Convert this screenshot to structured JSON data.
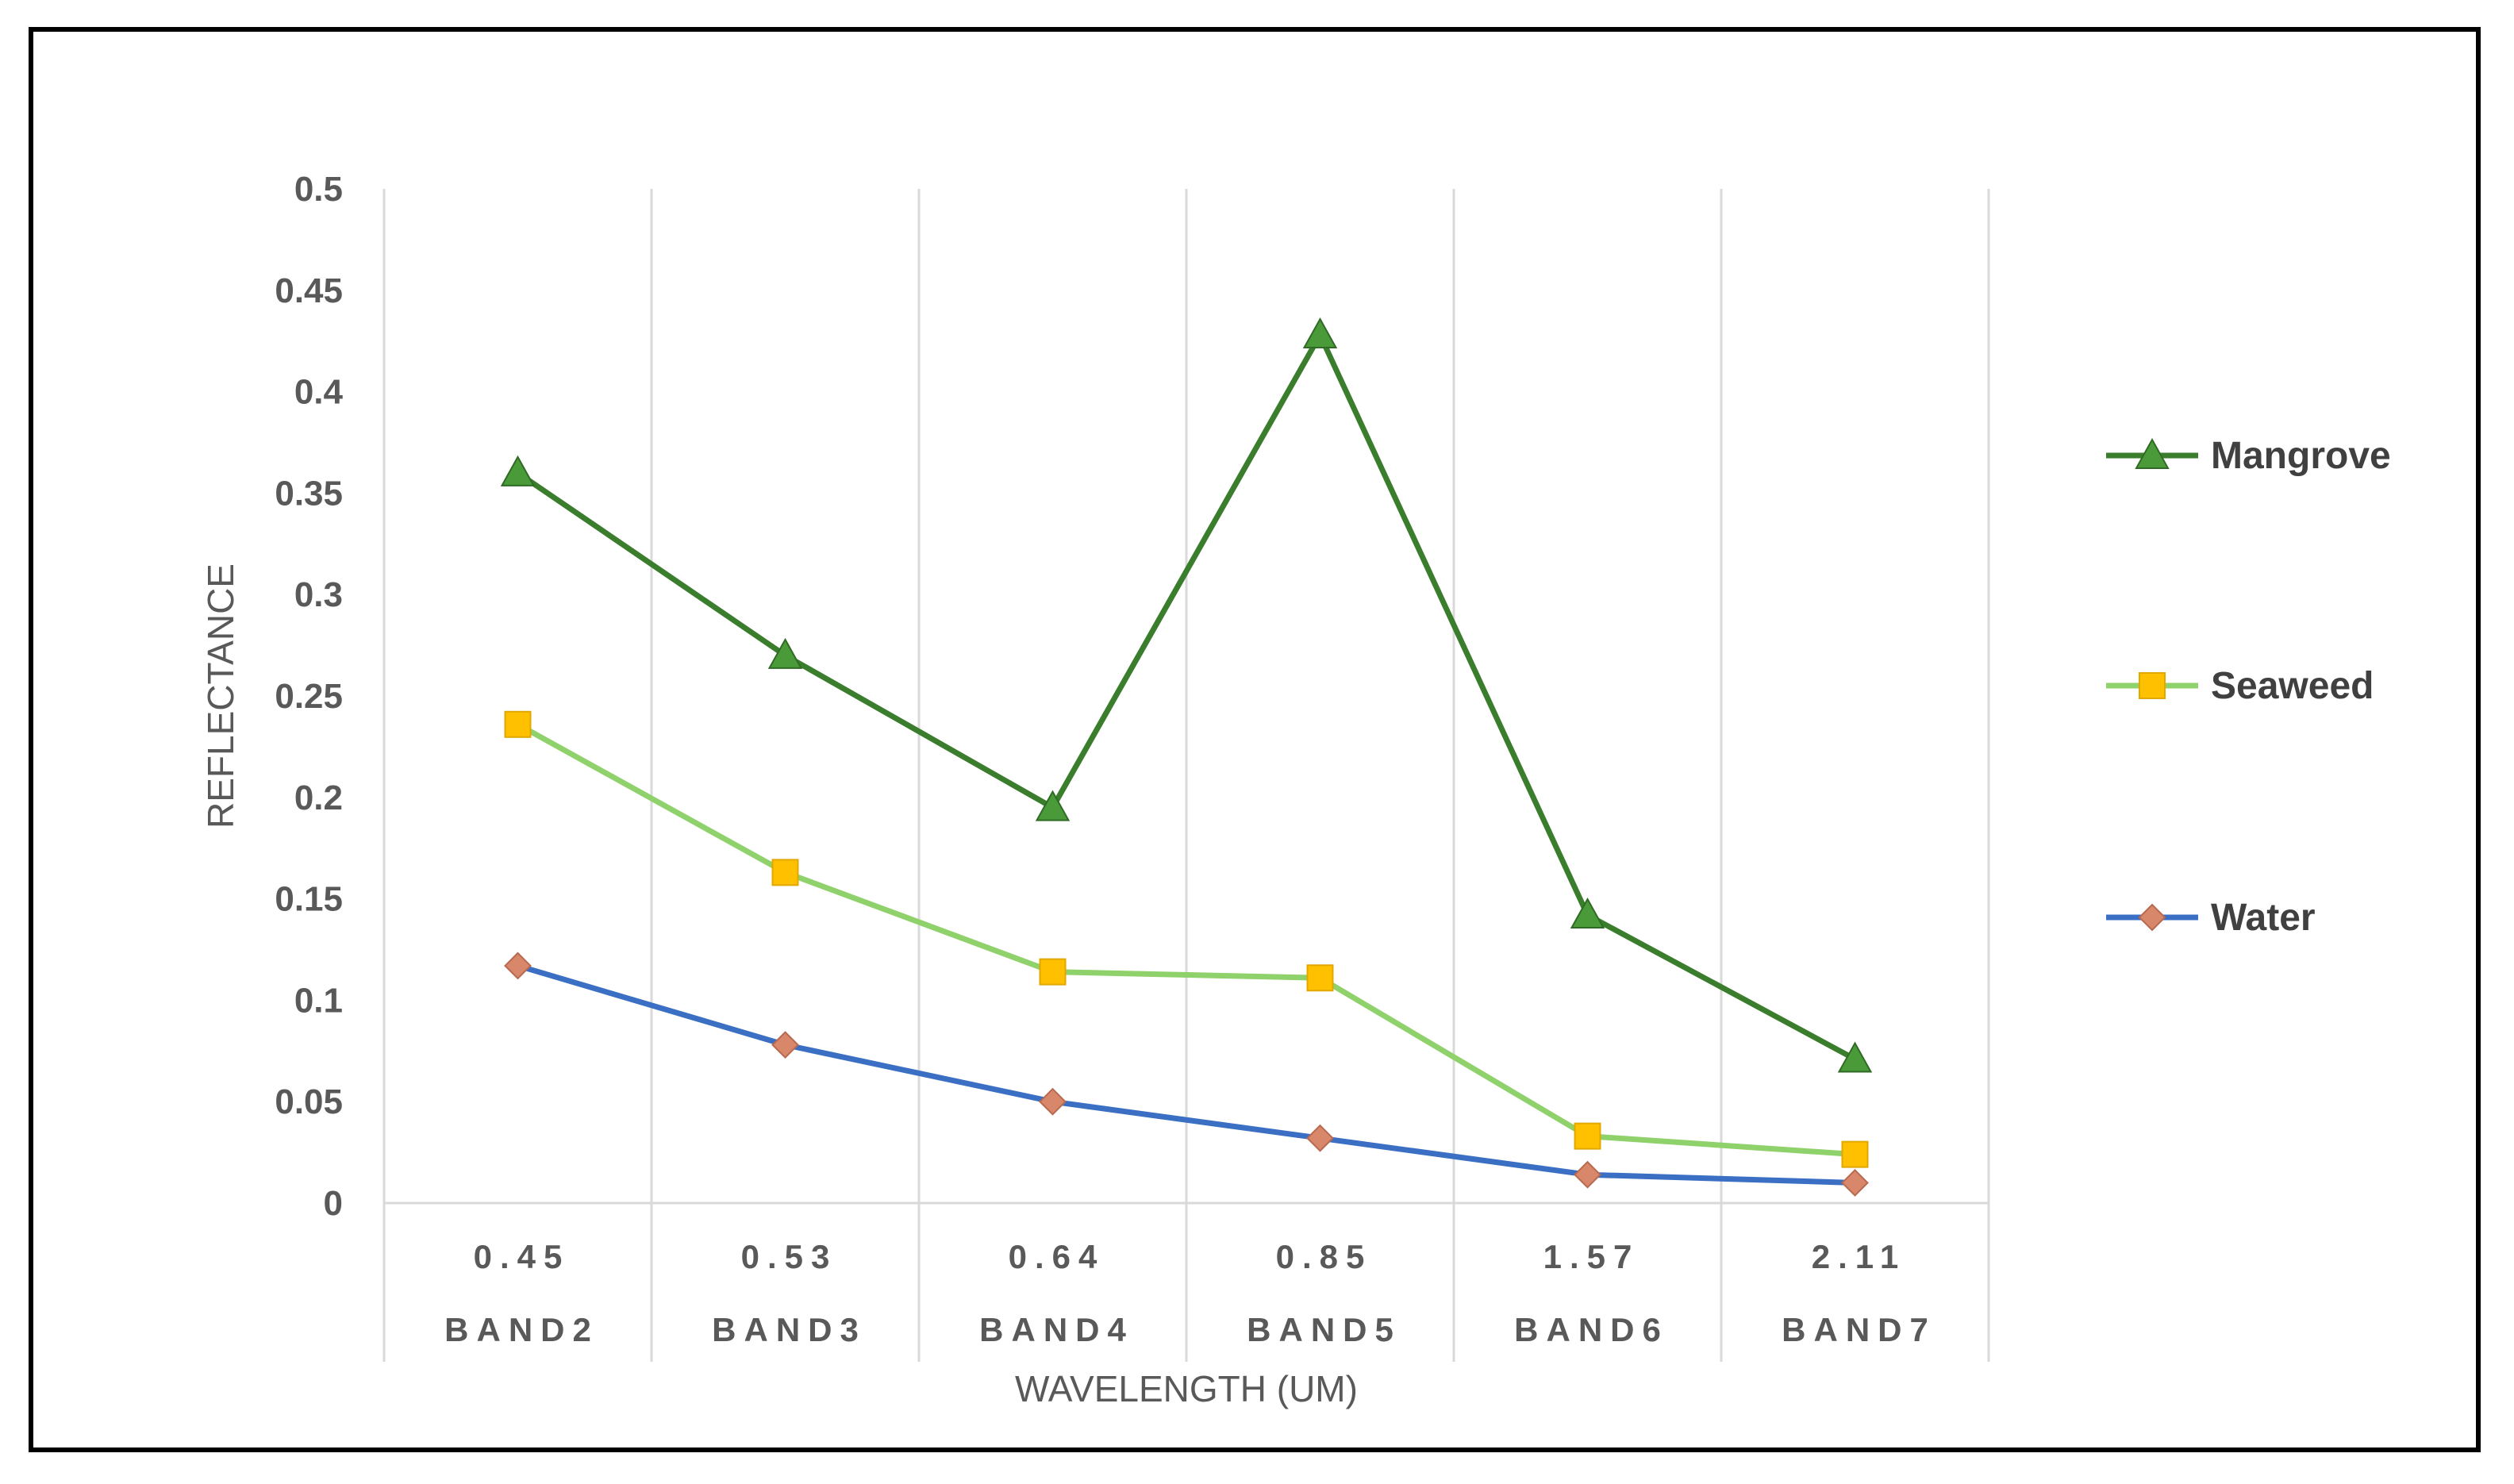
{
  "chart_data": {
    "type": "line",
    "title": "",
    "xlabel": "WAVELENGTH (UM)",
    "ylabel": "REFLECTANCE",
    "categories": [
      "0.45",
      "0.53",
      "0.64",
      "0.85",
      "1.57",
      "2.11"
    ],
    "category_groups": [
      "BAND2",
      "BAND3",
      "BAND4",
      "BAND5",
      "BAND6",
      "BAND7"
    ],
    "ylim": [
      0,
      0.5
    ],
    "yticks": [
      "0",
      "0.05",
      "0.1",
      "0.15",
      "0.2",
      "0.25",
      "0.3",
      "0.35",
      "0.4",
      "0.45",
      "0.5"
    ],
    "grid": "vertical",
    "legend_position": "right",
    "series": [
      {
        "name": "Mangrove",
        "values": [
          0.36,
          0.27,
          0.195,
          0.428,
          0.142,
          0.071
        ],
        "line_color": "#3a7d2c",
        "marker": "triangle",
        "marker_color": "#4a9a3a"
      },
      {
        "name": "Seaweed",
        "values": [
          0.236,
          0.163,
          0.114,
          0.111,
          0.033,
          0.024
        ],
        "line_color": "#8fd16a",
        "marker": "square",
        "marker_color": "#ffc000"
      },
      {
        "name": "Water",
        "values": [
          0.117,
          0.078,
          0.05,
          0.032,
          0.014,
          0.01
        ],
        "line_color": "#3a6fc4",
        "marker": "diamond",
        "marker_color": "#d8876a"
      }
    ]
  }
}
